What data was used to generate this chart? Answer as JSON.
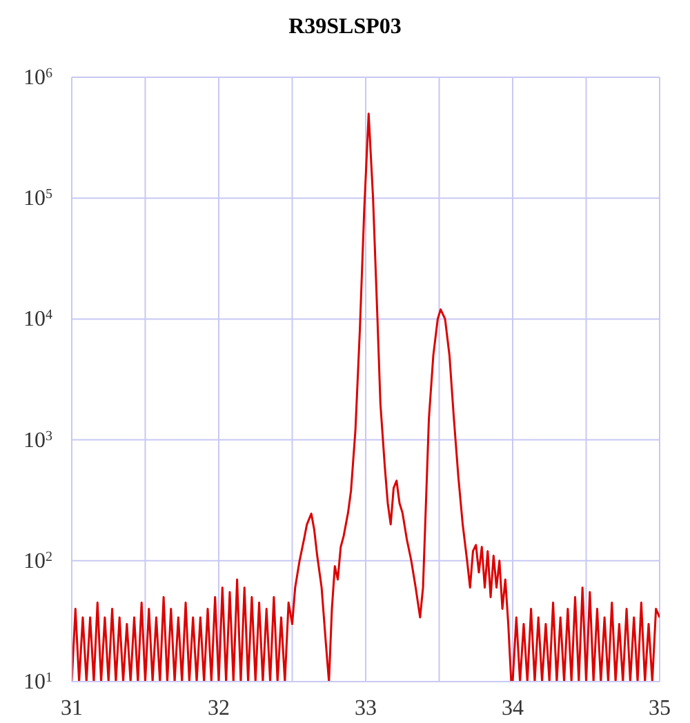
{
  "chart_data": {
    "type": "line",
    "title": "R39SLSP03",
    "log": "y",
    "grid": true,
    "xlim": [
      31,
      35
    ],
    "xticks": [
      31,
      {
        "value": 31.5,
        "label": null
      },
      32,
      {
        "value": 32.5,
        "label": null
      },
      33,
      {
        "value": 33.5,
        "label": null
      },
      34,
      {
        "value": 34.5,
        "label": null
      },
      35
    ],
    "ylim": [
      10,
      1000000
    ],
    "yticks": [
      {
        "value": 10,
        "label": "10$^{1}$"
      },
      {
        "value": 100,
        "label": "10$^{2}$"
      },
      {
        "value": 1000,
        "label": "10$^{3}$"
      },
      {
        "value": 10000,
        "label": "10$^{4}$"
      },
      {
        "value": 100000,
        "label": "10$^{5}$"
      },
      {
        "value": 1000000,
        "label": "10$^{6}$"
      }
    ],
    "series": [
      {
        "color": "#dd0000",
        "x": [
          31,
          31.025,
          31.05,
          31.075,
          31.1,
          31.125,
          31.15,
          31.175,
          31.2,
          31.225,
          31.25,
          31.275,
          31.3,
          31.325,
          31.35,
          31.375,
          31.4,
          31.425,
          31.45,
          31.475,
          31.5,
          31.525,
          31.55,
          31.575,
          31.6,
          31.625,
          31.65,
          31.675,
          31.7,
          31.725,
          31.75,
          31.775,
          31.8,
          31.825,
          31.85,
          31.875,
          31.9,
          31.925,
          31.95,
          31.975,
          32,
          32.025,
          32.05,
          32.075,
          32.1,
          32.125,
          32.15,
          32.175,
          32.2,
          32.225,
          32.25,
          32.275,
          32.3,
          32.325,
          32.35,
          32.375,
          32.4,
          32.425,
          32.45,
          32.475,
          32.5,
          32.52,
          32.55,
          32.58,
          32.6,
          32.63,
          32.65,
          32.67,
          32.7,
          32.73,
          32.75,
          32.77,
          32.79,
          32.81,
          32.83,
          32.85,
          32.88,
          32.9,
          32.93,
          32.96,
          32.99,
          33.02,
          33.05,
          33.08,
          33.1,
          33.13,
          33.15,
          33.17,
          33.19,
          33.21,
          33.23,
          33.25,
          33.28,
          33.31,
          33.34,
          33.37,
          33.39,
          33.41,
          33.43,
          33.46,
          33.49,
          33.51,
          33.54,
          33.57,
          33.6,
          33.63,
          33.66,
          33.69,
          33.71,
          33.73,
          33.75,
          33.77,
          33.79,
          33.81,
          33.83,
          33.85,
          33.87,
          33.89,
          33.91,
          33.93,
          33.95,
          33.97,
          33.99,
          34,
          34.025,
          34.05,
          34.075,
          34.1,
          34.125,
          34.15,
          34.175,
          34.2,
          34.225,
          34.25,
          34.275,
          34.3,
          34.325,
          34.35,
          34.375,
          34.4,
          34.425,
          34.45,
          34.475,
          34.5,
          34.525,
          34.55,
          34.575,
          34.6,
          34.625,
          34.65,
          34.675,
          34.7,
          34.725,
          34.75,
          34.775,
          34.8,
          34.825,
          34.85,
          34.875,
          34.9,
          34.925,
          34.95,
          34.975,
          35
        ],
        "values": [
          10,
          40,
          10,
          34,
          10,
          34,
          10,
          45,
          10,
          34,
          10,
          40,
          10,
          34,
          10,
          30,
          10,
          34,
          10,
          45,
          10,
          40,
          10,
          34,
          10,
          50,
          10,
          40,
          10,
          34,
          10,
          45,
          10,
          34,
          10,
          34,
          10,
          40,
          10,
          50,
          10,
          60,
          10,
          55,
          10,
          70,
          10,
          60,
          10,
          50,
          10,
          45,
          10,
          40,
          10,
          50,
          10,
          34,
          10,
          45,
          30,
          60,
          100,
          150,
          200,
          245,
          180,
          110,
          60,
          20,
          10,
          40,
          90,
          70,
          130,
          160,
          250,
          380,
          1200,
          8000,
          80000,
          500000,
          100000,
          10000,
          2000,
          600,
          300,
          200,
          400,
          460,
          300,
          250,
          150,
          100,
          60,
          34,
          60,
          300,
          1500,
          5000,
          10000,
          12000,
          10000,
          5000,
          1500,
          500,
          200,
          100,
          60,
          120,
          135,
          80,
          130,
          60,
          120,
          50,
          110,
          60,
          100,
          40,
          70,
          30,
          10,
          10,
          34,
          10,
          30,
          10,
          40,
          10,
          34,
          10,
          30,
          10,
          45,
          10,
          34,
          10,
          40,
          10,
          50,
          10,
          60,
          10,
          55,
          10,
          40,
          10,
          34,
          10,
          45,
          10,
          30,
          10,
          40,
          10,
          34,
          10,
          45,
          10,
          30,
          10,
          40,
          34
        ]
      }
    ]
  }
}
